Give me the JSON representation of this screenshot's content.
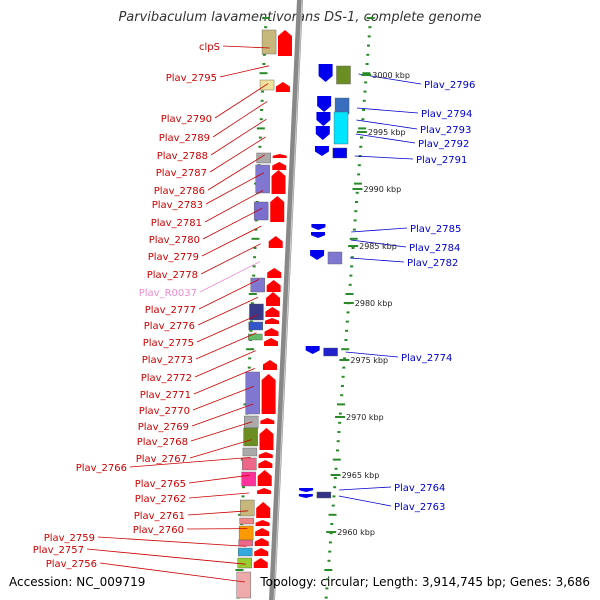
{
  "title": "Parvibaculum lavamentivorans DS-1, complete genome",
  "accession": "Accession: NC_009719",
  "summary": "Topology: circular; Length: 3,914,745 bp; Genes: 3,686",
  "colors": {
    "forward_gene": "#ff0000",
    "reverse_gene": "#0000ee",
    "backbone": "#888888",
    "tick": "#2a8a2a",
    "left_label": "#cc0000",
    "right_label": "#0000cc",
    "rna_label": "#f08ad0"
  },
  "scale_labels": [
    "3000 kbp",
    "2995 kbp",
    "2990 kbp",
    "2985 kbp",
    "2980 kbp",
    "2975 kbp",
    "2970 kbp",
    "2965 kbp",
    "2960 kbp"
  ],
  "left_labels": [
    "clpS",
    "Plav_2795",
    "Plav_2790",
    "Plav_2789",
    "Plav_2788",
    "Plav_2787",
    "Plav_2786",
    "Plav_2783",
    "Plav_2781",
    "Plav_2780",
    "Plav_2779",
    "Plav_2778",
    "Plav_R0037",
    "Plav_2777",
    "Plav_2776",
    "Plav_2775",
    "Plav_2773",
    "Plav_2772",
    "Plav_2771",
    "Plav_2770",
    "Plav_2769",
    "Plav_2768",
    "Plav_2767",
    "Plav_2766",
    "Plav_2765",
    "Plav_2762",
    "Plav_2761",
    "Plav_2760",
    "Plav_2759",
    "Plav_2757",
    "Plav_2756"
  ],
  "right_labels": [
    "Plav_2796",
    "Plav_2794",
    "Plav_2793",
    "Plav_2792",
    "Plav_2791",
    "Plav_2785",
    "Plav_2784",
    "Plav_2782",
    "Plav_2774",
    "Plav_2764",
    "Plav_2763"
  ]
}
